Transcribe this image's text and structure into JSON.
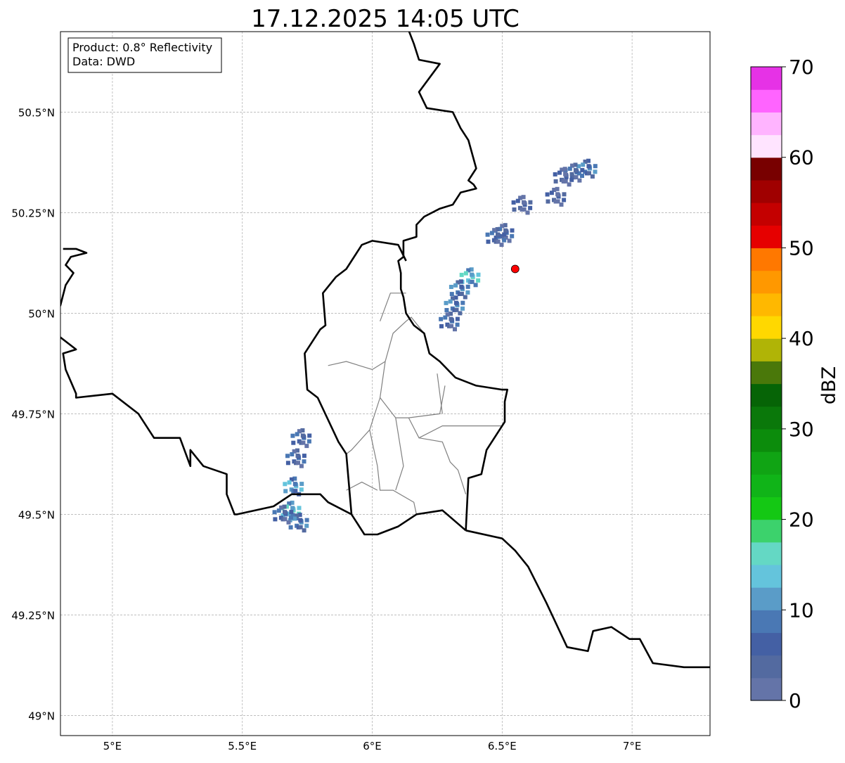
{
  "title": "17.12.2025 14:05 UTC",
  "info_box": {
    "product": "Product: 0.8° Reflectivity",
    "source": "Data: DWD"
  },
  "map": {
    "lon_range": [
      4.8,
      7.3
    ],
    "lat_range": [
      48.95,
      50.7
    ],
    "lon_ticks": [
      {
        "value": 5.0,
        "label": "5°E"
      },
      {
        "value": 5.5,
        "label": "5.5°E"
      },
      {
        "value": 6.0,
        "label": "6°E"
      },
      {
        "value": 6.5,
        "label": "6.5°E"
      },
      {
        "value": 7.0,
        "label": "7°E"
      }
    ],
    "lat_ticks": [
      {
        "value": 49.0,
        "label": "49°N"
      },
      {
        "value": 49.25,
        "label": "49.25°N"
      },
      {
        "value": 49.5,
        "label": "49.5°N"
      },
      {
        "value": 49.75,
        "label": "49.75°N"
      },
      {
        "value": 50.0,
        "label": "50°N"
      },
      {
        "value": 50.25,
        "label": "50.25°N"
      },
      {
        "value": 50.5,
        "label": "50.5°N"
      }
    ],
    "gridlines": true,
    "marker": {
      "lon": 6.55,
      "lat": 50.11,
      "color": "#ff0000"
    },
    "borders": [
      [
        [
          6.13,
          50.72
        ],
        [
          6.16,
          50.67
        ],
        [
          6.18,
          50.63
        ],
        [
          6.26,
          50.62
        ],
        [
          6.18,
          50.55
        ],
        [
          6.21,
          50.51
        ],
        [
          6.31,
          50.5
        ],
        [
          6.34,
          50.46
        ],
        [
          6.37,
          50.43
        ],
        [
          6.4,
          50.36
        ],
        [
          6.37,
          50.33
        ],
        [
          6.39,
          50.32
        ],
        [
          6.4,
          50.31
        ],
        [
          6.34,
          50.3
        ],
        [
          6.31,
          50.27
        ],
        [
          6.26,
          50.26
        ],
        [
          6.2,
          50.24
        ],
        [
          6.17,
          50.22
        ],
        [
          6.17,
          50.19
        ],
        [
          6.12,
          50.18
        ],
        [
          6.12,
          50.14
        ],
        [
          6.1,
          50.13
        ],
        [
          6.11,
          50.1
        ],
        [
          6.11,
          50.06
        ],
        [
          6.12,
          50.04
        ],
        [
          6.13,
          50.0
        ],
        [
          6.16,
          49.97
        ],
        [
          6.2,
          49.95
        ],
        [
          6.22,
          49.9
        ],
        [
          6.26,
          49.88
        ],
        [
          6.32,
          49.84
        ],
        [
          6.4,
          49.82
        ],
        [
          6.5,
          49.81
        ],
        [
          6.52,
          49.81
        ],
        [
          6.51,
          49.78
        ],
        [
          6.51,
          49.73
        ],
        [
          6.44,
          49.66
        ],
        [
          6.42,
          49.6
        ],
        [
          6.37,
          49.59
        ],
        [
          6.36,
          49.46
        ]
      ],
      [
        [
          6.36,
          49.46
        ],
        [
          6.27,
          49.51
        ],
        [
          6.17,
          49.5
        ],
        [
          6.1,
          49.47
        ],
        [
          6.02,
          49.45
        ],
        [
          5.97,
          49.45
        ],
        [
          5.92,
          49.5
        ],
        [
          5.83,
          49.53
        ],
        [
          5.8,
          49.55
        ],
        [
          5.75,
          49.55
        ],
        [
          5.69,
          49.55
        ],
        [
          5.62,
          49.52
        ],
        [
          5.48,
          49.5
        ],
        [
          5.47,
          49.5
        ],
        [
          5.44,
          49.55
        ],
        [
          5.44,
          49.6
        ],
        [
          5.35,
          49.62
        ],
        [
          5.3,
          49.66
        ],
        [
          5.3,
          49.62
        ],
        [
          5.26,
          49.69
        ],
        [
          5.16,
          49.69
        ],
        [
          5.1,
          49.75
        ],
        [
          5.0,
          49.8
        ],
        [
          4.86,
          49.79
        ],
        [
          4.86,
          49.8
        ],
        [
          4.82,
          49.86
        ],
        [
          4.81,
          49.9
        ],
        [
          4.86,
          49.91
        ],
        [
          4.78,
          49.95
        ]
      ],
      [
        [
          4.78,
          49.99
        ],
        [
          4.8,
          50.02
        ],
        [
          4.82,
          50.07
        ],
        [
          4.85,
          50.1
        ],
        [
          4.82,
          50.12
        ],
        [
          4.84,
          50.14
        ],
        [
          4.9,
          50.15
        ],
        [
          4.86,
          50.16
        ],
        [
          4.81,
          50.16
        ]
      ],
      [
        [
          6.13,
          50.13
        ],
        [
          6.1,
          50.17
        ],
        [
          6.0,
          50.18
        ],
        [
          5.96,
          50.17
        ],
        [
          5.9,
          50.11
        ],
        [
          5.86,
          50.09
        ],
        [
          5.81,
          50.05
        ],
        [
          5.82,
          49.97
        ],
        [
          5.8,
          49.96
        ],
        [
          5.74,
          49.9
        ],
        [
          5.75,
          49.81
        ],
        [
          5.79,
          49.79
        ],
        [
          5.87,
          49.68
        ],
        [
          5.9,
          49.65
        ],
        [
          5.92,
          49.5
        ]
      ],
      [
        [
          6.36,
          49.46
        ],
        [
          6.5,
          49.44
        ],
        [
          6.55,
          49.41
        ],
        [
          6.6,
          49.37
        ],
        [
          6.67,
          49.28
        ],
        [
          6.75,
          49.17
        ],
        [
          6.83,
          49.16
        ],
        [
          6.85,
          49.21
        ],
        [
          6.92,
          49.22
        ],
        [
          6.99,
          49.19
        ],
        [
          7.03,
          49.19
        ],
        [
          7.08,
          49.13
        ],
        [
          7.2,
          49.12
        ],
        [
          7.3,
          49.12
        ]
      ]
    ],
    "regions": [
      [
        [
          5.83,
          49.87
        ],
        [
          5.9,
          49.88
        ],
        [
          5.95,
          49.87
        ],
        [
          6.0,
          49.86
        ],
        [
          6.05,
          49.88
        ],
        [
          6.08,
          49.95
        ],
        [
          6.13,
          49.98
        ],
        [
          6.15,
          49.99
        ],
        [
          6.2,
          49.95
        ]
      ],
      [
        [
          6.05,
          49.88
        ],
        [
          6.03,
          49.79
        ],
        [
          6.09,
          49.74
        ],
        [
          6.14,
          49.74
        ],
        [
          6.26,
          49.75
        ],
        [
          6.28,
          49.82
        ]
      ],
      [
        [
          6.03,
          49.79
        ],
        [
          5.99,
          49.71
        ],
        [
          5.92,
          49.66
        ],
        [
          5.9,
          49.65
        ]
      ],
      [
        [
          5.99,
          49.71
        ],
        [
          6.02,
          49.62
        ],
        [
          6.03,
          49.56
        ],
        [
          6.08,
          49.56
        ],
        [
          6.16,
          49.53
        ],
        [
          6.17,
          49.5
        ]
      ],
      [
        [
          6.09,
          49.74
        ],
        [
          6.11,
          49.66
        ],
        [
          6.12,
          49.62
        ],
        [
          6.09,
          49.56
        ]
      ],
      [
        [
          6.14,
          49.74
        ],
        [
          6.18,
          49.69
        ],
        [
          6.27,
          49.72
        ],
        [
          6.35,
          49.72
        ],
        [
          6.5,
          49.72
        ]
      ],
      [
        [
          6.18,
          49.69
        ],
        [
          6.27,
          49.68
        ],
        [
          6.3,
          49.63
        ],
        [
          6.33,
          49.61
        ],
        [
          6.36,
          49.55
        ]
      ],
      [
        [
          6.27,
          49.75
        ],
        [
          6.25,
          49.85
        ]
      ],
      [
        [
          6.03,
          49.98
        ],
        [
          6.07,
          50.05
        ],
        [
          6.13,
          50.05
        ]
      ],
      [
        [
          5.9,
          49.56
        ],
        [
          5.96,
          49.58
        ],
        [
          6.02,
          49.56
        ]
      ]
    ]
  },
  "colorbar": {
    "label": "dBZ",
    "min": 0,
    "max": 70,
    "step": 2.5,
    "tick_labels": [
      "0",
      "10",
      "20",
      "30",
      "40",
      "50",
      "60",
      "70"
    ],
    "colors": [
      "#6474a8",
      "#536aa0",
      "#4460a4",
      "#4a78b4",
      "#5a9cc8",
      "#64c4dc",
      "#64d8c4",
      "#3cd26c",
      "#14c814",
      "#10b418",
      "#10a414",
      "#0c8c0c",
      "#0a780a",
      "#066406",
      "#4a780a",
      "#b0b406",
      "#ffd800",
      "#ffb800",
      "#ff9800",
      "#ff7800",
      "#e60000",
      "#c40000",
      "#a00000",
      "#780000",
      "#ffe4ff",
      "#ffb4ff",
      "#ff64ff",
      "#e632e6"
    ]
  },
  "echoes": [
    {
      "lon": 6.83,
      "lat": 50.36,
      "dbz": 12
    },
    {
      "lon": 6.78,
      "lat": 50.35,
      "dbz": 8
    },
    {
      "lon": 6.74,
      "lat": 50.34,
      "dbz": 7
    },
    {
      "lon": 6.71,
      "lat": 50.29,
      "dbz": 6
    },
    {
      "lon": 6.58,
      "lat": 50.27,
      "dbz": 7
    },
    {
      "lon": 6.51,
      "lat": 50.2,
      "dbz": 8
    },
    {
      "lon": 6.48,
      "lat": 50.19,
      "dbz": 9
    },
    {
      "lon": 6.38,
      "lat": 50.09,
      "dbz": 16
    },
    {
      "lon": 6.34,
      "lat": 50.06,
      "dbz": 12
    },
    {
      "lon": 6.32,
      "lat": 50.02,
      "dbz": 10
    },
    {
      "lon": 6.3,
      "lat": 49.98,
      "dbz": 8
    },
    {
      "lon": 5.73,
      "lat": 49.69,
      "dbz": 8
    },
    {
      "lon": 5.71,
      "lat": 49.64,
      "dbz": 9
    },
    {
      "lon": 5.7,
      "lat": 49.57,
      "dbz": 14
    },
    {
      "lon": 5.69,
      "lat": 49.51,
      "dbz": 16
    },
    {
      "lon": 5.72,
      "lat": 49.48,
      "dbz": 10
    },
    {
      "lon": 5.66,
      "lat": 49.5,
      "dbz": 9
    }
  ]
}
